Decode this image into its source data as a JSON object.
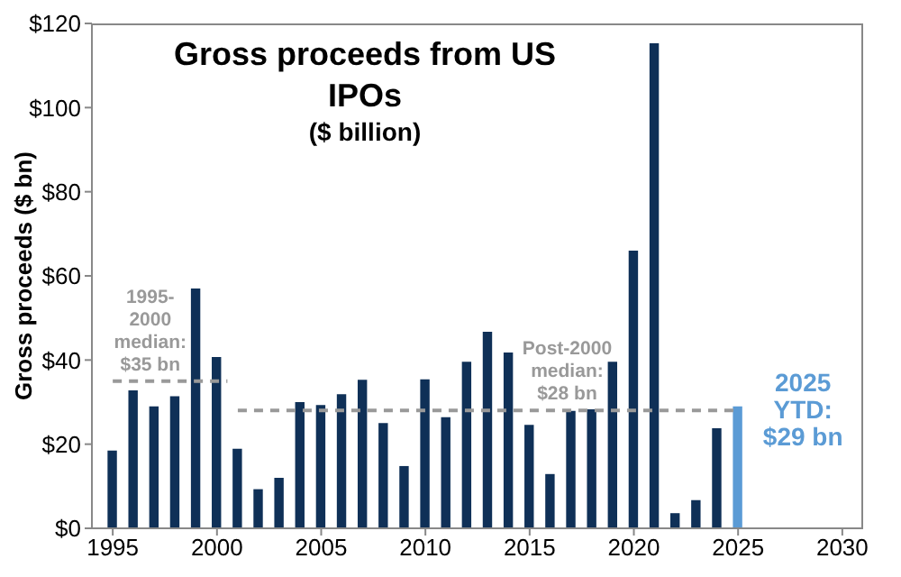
{
  "chart_data": {
    "type": "bar",
    "title": "Gross proceeds from US IPOs",
    "subtitle": "($ billion)",
    "ylabel": "Gross proceeds ($ bn)",
    "x": [
      1995,
      1996,
      1997,
      1998,
      1999,
      2000,
      2001,
      2002,
      2003,
      2004,
      2005,
      2006,
      2007,
      2008,
      2009,
      2010,
      2011,
      2012,
      2013,
      2014,
      2015,
      2016,
      2017,
      2018,
      2019,
      2020,
      2021,
      2022,
      2023,
      2024,
      2025
    ],
    "series": [
      {
        "type": "bar",
        "values": [
          18.5,
          32.8,
          29,
          31.4,
          57,
          40.7,
          18.9,
          9.3,
          12,
          30,
          29.3,
          31.9,
          35.3,
          25,
          14.8,
          35.4,
          26.4,
          39.6,
          46.7,
          41.8,
          24.6,
          12.9,
          27.9,
          28.3,
          39.6,
          66,
          115.3,
          3.6,
          6.7,
          23.8,
          29
        ],
        "colors": [
          "#0f3057",
          "#0f3057",
          "#0f3057",
          "#0f3057",
          "#0f3057",
          "#0f3057",
          "#0f3057",
          "#0f3057",
          "#0f3057",
          "#0f3057",
          "#0f3057",
          "#0f3057",
          "#0f3057",
          "#0f3057",
          "#0f3057",
          "#0f3057",
          "#0f3057",
          "#0f3057",
          "#0f3057",
          "#0f3057",
          "#0f3057",
          "#0f3057",
          "#0f3057",
          "#0f3057",
          "#0f3057",
          "#0f3057",
          "#0f3057",
          "#0f3057",
          "#0f3057",
          "#0f3057",
          "#5b9bd5"
        ]
      },
      {
        "type": "line",
        "x": [
          1995,
          2000.5
        ],
        "values": [
          35,
          35
        ],
        "color": "#999999",
        "line_style": "dashed",
        "marker": "none"
      },
      {
        "type": "line",
        "x": [
          2001,
          2025
        ],
        "values": [
          28,
          28
        ],
        "color": "#999999",
        "line_style": "dashed",
        "marker": "none"
      }
    ],
    "annotations": [
      {
        "text": "1995-\n2000\nmedian:\n$35 bn",
        "x": 1996.8,
        "y": 35
      },
      {
        "text": "Post-2000\nmedian:\n$28 bn",
        "x": 2016.8,
        "y": 28
      },
      {
        "text": "2025\nYTD:\n$29 bn",
        "x": 2025,
        "y": 29
      }
    ],
    "xlim": [
      1994,
      2031
    ],
    "xticks": [
      1995,
      2000,
      2005,
      2010,
      2015,
      2020,
      2025,
      2030
    ],
    "ylim": [
      0,
      120
    ],
    "yticks": [
      {
        "value": 0,
        "label": "$0"
      },
      {
        "value": 20,
        "label": "$20"
      },
      {
        "value": 40,
        "label": "$40"
      },
      {
        "value": 60,
        "label": "$60"
      },
      {
        "value": 80,
        "label": "$80"
      },
      {
        "value": 100,
        "label": "$100"
      },
      {
        "value": 120,
        "label": "$120"
      }
    ],
    "relative": false
  }
}
